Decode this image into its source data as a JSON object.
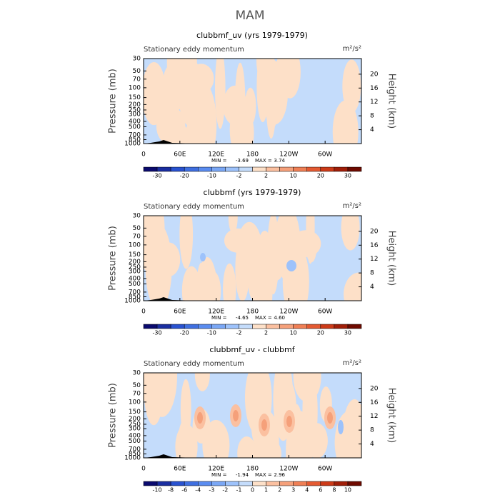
{
  "figure_title": "MAM",
  "chart_data": [
    {
      "type": "contour",
      "title": "clubbmf_uv (yrs 1979-1979)",
      "subtitle": "Stationary eddy momentum",
      "units": "m²/s²",
      "ylabel": "Pressure (mb)",
      "y2label": "Height (km)",
      "xlim": [
        0,
        360
      ],
      "xticks": [
        0,
        {
          "value": 60,
          "label": "60E"
        },
        {
          "value": 120,
          "label": "120E"
        },
        180,
        {
          "value": 240,
          "label": "120W"
        },
        {
          "value": 300,
          "label": "60W"
        }
      ],
      "ylim": [
        1000,
        30
      ],
      "yscale": "log",
      "yticks": [
        30,
        50,
        70,
        100,
        150,
        200,
        250,
        300,
        400,
        500,
        700,
        850,
        1000
      ],
      "y2lim": [
        0,
        24.5
      ],
      "y2ticks": [
        4,
        8,
        12,
        16,
        20
      ],
      "min_label": "MIN =",
      "min": {
        "value": -3.69,
        "label": "-3.69"
      },
      "max_label": "MAX =",
      "max": {
        "value": 3.74,
        "label": "3.74"
      },
      "colorbar": {
        "labels": [
          -30,
          -20,
          -10,
          -2,
          2,
          10,
          20,
          30
        ],
        "label_step": 2,
        "colors": [
          "#0a0a6e",
          "#1a2ea0",
          "#2952d0",
          "#3f6fe0",
          "#5a8cf0",
          "#7aa7f5",
          "#9dc2fb",
          "#c4dcfb",
          "#fde0c8",
          "#fbc0a0",
          "#f5a07a",
          "#ef7f55",
          "#e45a32",
          "#cc3a18",
          "#a01e08",
          "#6e0a00"
        ]
      }
    },
    {
      "type": "contour",
      "title": "clubbmf (yrs 1979-1979)",
      "subtitle": "Stationary eddy momentum",
      "units": "m²/s²",
      "ylabel": "Pressure (mb)",
      "y2label": "Height (km)",
      "xlim": [
        0,
        360
      ],
      "xticks": [
        0,
        {
          "value": 60,
          "label": "60E"
        },
        {
          "value": 120,
          "label": "120E"
        },
        180,
        {
          "value": 240,
          "label": "120W"
        },
        {
          "value": 300,
          "label": "60W"
        }
      ],
      "ylim": [
        1000,
        30
      ],
      "yscale": "log",
      "yticks": [
        30,
        50,
        70,
        100,
        150,
        200,
        250,
        300,
        400,
        500,
        700,
        850,
        1000
      ],
      "y2lim": [
        0,
        24.5
      ],
      "y2ticks": [
        4,
        8,
        12,
        16,
        20
      ],
      "min_label": "MIN =",
      "min": {
        "value": -4.65,
        "label": "-4.65"
      },
      "max_label": "MAX =",
      "max": {
        "value": 4.6,
        "label": "4.60"
      },
      "colorbar": {
        "labels": [
          -30,
          -20,
          -10,
          -2,
          2,
          10,
          20,
          30
        ],
        "label_step": 2,
        "colors": [
          "#0a0a6e",
          "#1a2ea0",
          "#2952d0",
          "#3f6fe0",
          "#5a8cf0",
          "#7aa7f5",
          "#9dc2fb",
          "#c4dcfb",
          "#fde0c8",
          "#fbc0a0",
          "#f5a07a",
          "#ef7f55",
          "#e45a32",
          "#cc3a18",
          "#a01e08",
          "#6e0a00"
        ]
      }
    },
    {
      "type": "contour",
      "title": "clubbmf_uv - clubbmf",
      "subtitle": "Stationary eddy momentum",
      "units": "m²/s²",
      "ylabel": "Pressure (mb)",
      "y2label": "Height (km)",
      "xlim": [
        0,
        360
      ],
      "xticks": [
        0,
        {
          "value": 60,
          "label": "60E"
        },
        {
          "value": 120,
          "label": "120E"
        },
        180,
        {
          "value": 240,
          "label": "120W"
        },
        {
          "value": 300,
          "label": "60W"
        }
      ],
      "ylim": [
        1000,
        30
      ],
      "yscale": "log",
      "yticks": [
        30,
        50,
        70,
        100,
        150,
        200,
        250,
        300,
        400,
        500,
        700,
        850,
        1000
      ],
      "y2lim": [
        0,
        24.5
      ],
      "y2ticks": [
        4,
        8,
        12,
        16,
        20
      ],
      "min_label": "MIN =",
      "min": {
        "value": -1.94,
        "label": "-1.94"
      },
      "max_label": "MAX =",
      "max": {
        "value": 2.96,
        "label": "2.96"
      },
      "colorbar": {
        "labels": [
          -10,
          -8,
          -6,
          -4,
          -3,
          -2,
          -1,
          0,
          1,
          2,
          3,
          4,
          6,
          8,
          10
        ],
        "label_step": 1,
        "colors": [
          "#0a0a6e",
          "#1a2ea0",
          "#2952d0",
          "#3f6fe0",
          "#5a8cf0",
          "#7aa7f5",
          "#9dc2fb",
          "#c4dcfb",
          "#fde0c8",
          "#fbc0a0",
          "#f5a07a",
          "#ef7f55",
          "#e45a32",
          "#cc3a18",
          "#a01e08",
          "#6e0a00"
        ]
      }
    }
  ]
}
